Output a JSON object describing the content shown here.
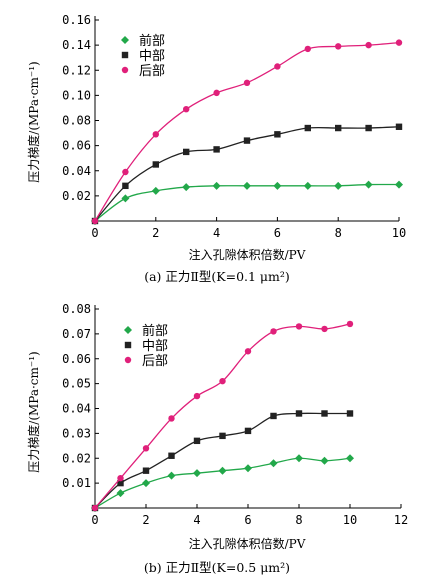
{
  "chart_data": [
    {
      "type": "line",
      "ylabel": "压力梯度/(MPa·cm⁻¹)",
      "xlabel": "注入孔隙体积倍数/PV",
      "caption": "(a) 正力Ⅱ型(K=0.1 μm²)",
      "xlim": [
        0,
        10
      ],
      "ylim": [
        0,
        0.16
      ],
      "xticks": [
        "0",
        "2",
        "4",
        "6",
        "8",
        "10"
      ],
      "yticks": [
        "0.02",
        "0.04",
        "0.06",
        "0.08",
        "0.10",
        "0.12",
        "0.14",
        "0.16"
      ],
      "x": [
        0,
        1,
        2,
        3,
        4,
        5,
        6,
        7,
        8,
        9,
        10
      ],
      "legend_position": "top-left",
      "series": [
        {
          "name": "前部",
          "color": "#22a84a",
          "marker": "diamond",
          "values": [
            0,
            0.018,
            0.024,
            0.027,
            0.028,
            0.028,
            0.028,
            0.028,
            0.028,
            0.029,
            0.029
          ]
        },
        {
          "name": "中部",
          "color": "#222222",
          "marker": "square",
          "values": [
            0,
            0.028,
            0.045,
            0.055,
            0.057,
            0.064,
            0.069,
            0.074,
            0.074,
            0.074,
            0.075
          ]
        },
        {
          "name": "后部",
          "color": "#e0207a",
          "marker": "circle",
          "values": [
            0,
            0.039,
            0.069,
            0.089,
            0.102,
            0.11,
            0.123,
            0.137,
            0.139,
            0.14,
            0.142
          ]
        }
      ]
    },
    {
      "type": "line",
      "ylabel": "压力梯度/(MPa·cm⁻¹)",
      "xlabel": "注入孔隙体积倍数/PV",
      "caption": "(b) 正力Ⅱ型(K=0.5 μm²)",
      "xlim": [
        0,
        12
      ],
      "ylim": [
        0,
        0.08
      ],
      "xticks": [
        "0",
        "2",
        "4",
        "6",
        "8",
        "10",
        "12"
      ],
      "yticks": [
        "0.01",
        "0.02",
        "0.03",
        "0.04",
        "0.05",
        "0.06",
        "0.07",
        "0.08"
      ],
      "x": [
        0,
        1,
        2,
        3,
        4,
        5,
        6,
        7,
        8,
        9,
        10
      ],
      "legend_position": "top-left",
      "series": [
        {
          "name": "前部",
          "color": "#22a84a",
          "marker": "diamond",
          "values": [
            0,
            0.006,
            0.01,
            0.013,
            0.014,
            0.015,
            0.016,
            0.018,
            0.02,
            0.019,
            0.02
          ]
        },
        {
          "name": "中部",
          "color": "#222222",
          "marker": "square",
          "values": [
            0,
            0.01,
            0.015,
            0.021,
            0.027,
            0.029,
            0.031,
            0.037,
            0.038,
            0.038,
            0.038
          ]
        },
        {
          "name": "后部",
          "color": "#e0207a",
          "marker": "circle",
          "values": [
            0,
            0.012,
            0.024,
            0.036,
            0.045,
            0.051,
            0.063,
            0.071,
            0.073,
            0.072,
            0.074
          ]
        }
      ]
    }
  ]
}
